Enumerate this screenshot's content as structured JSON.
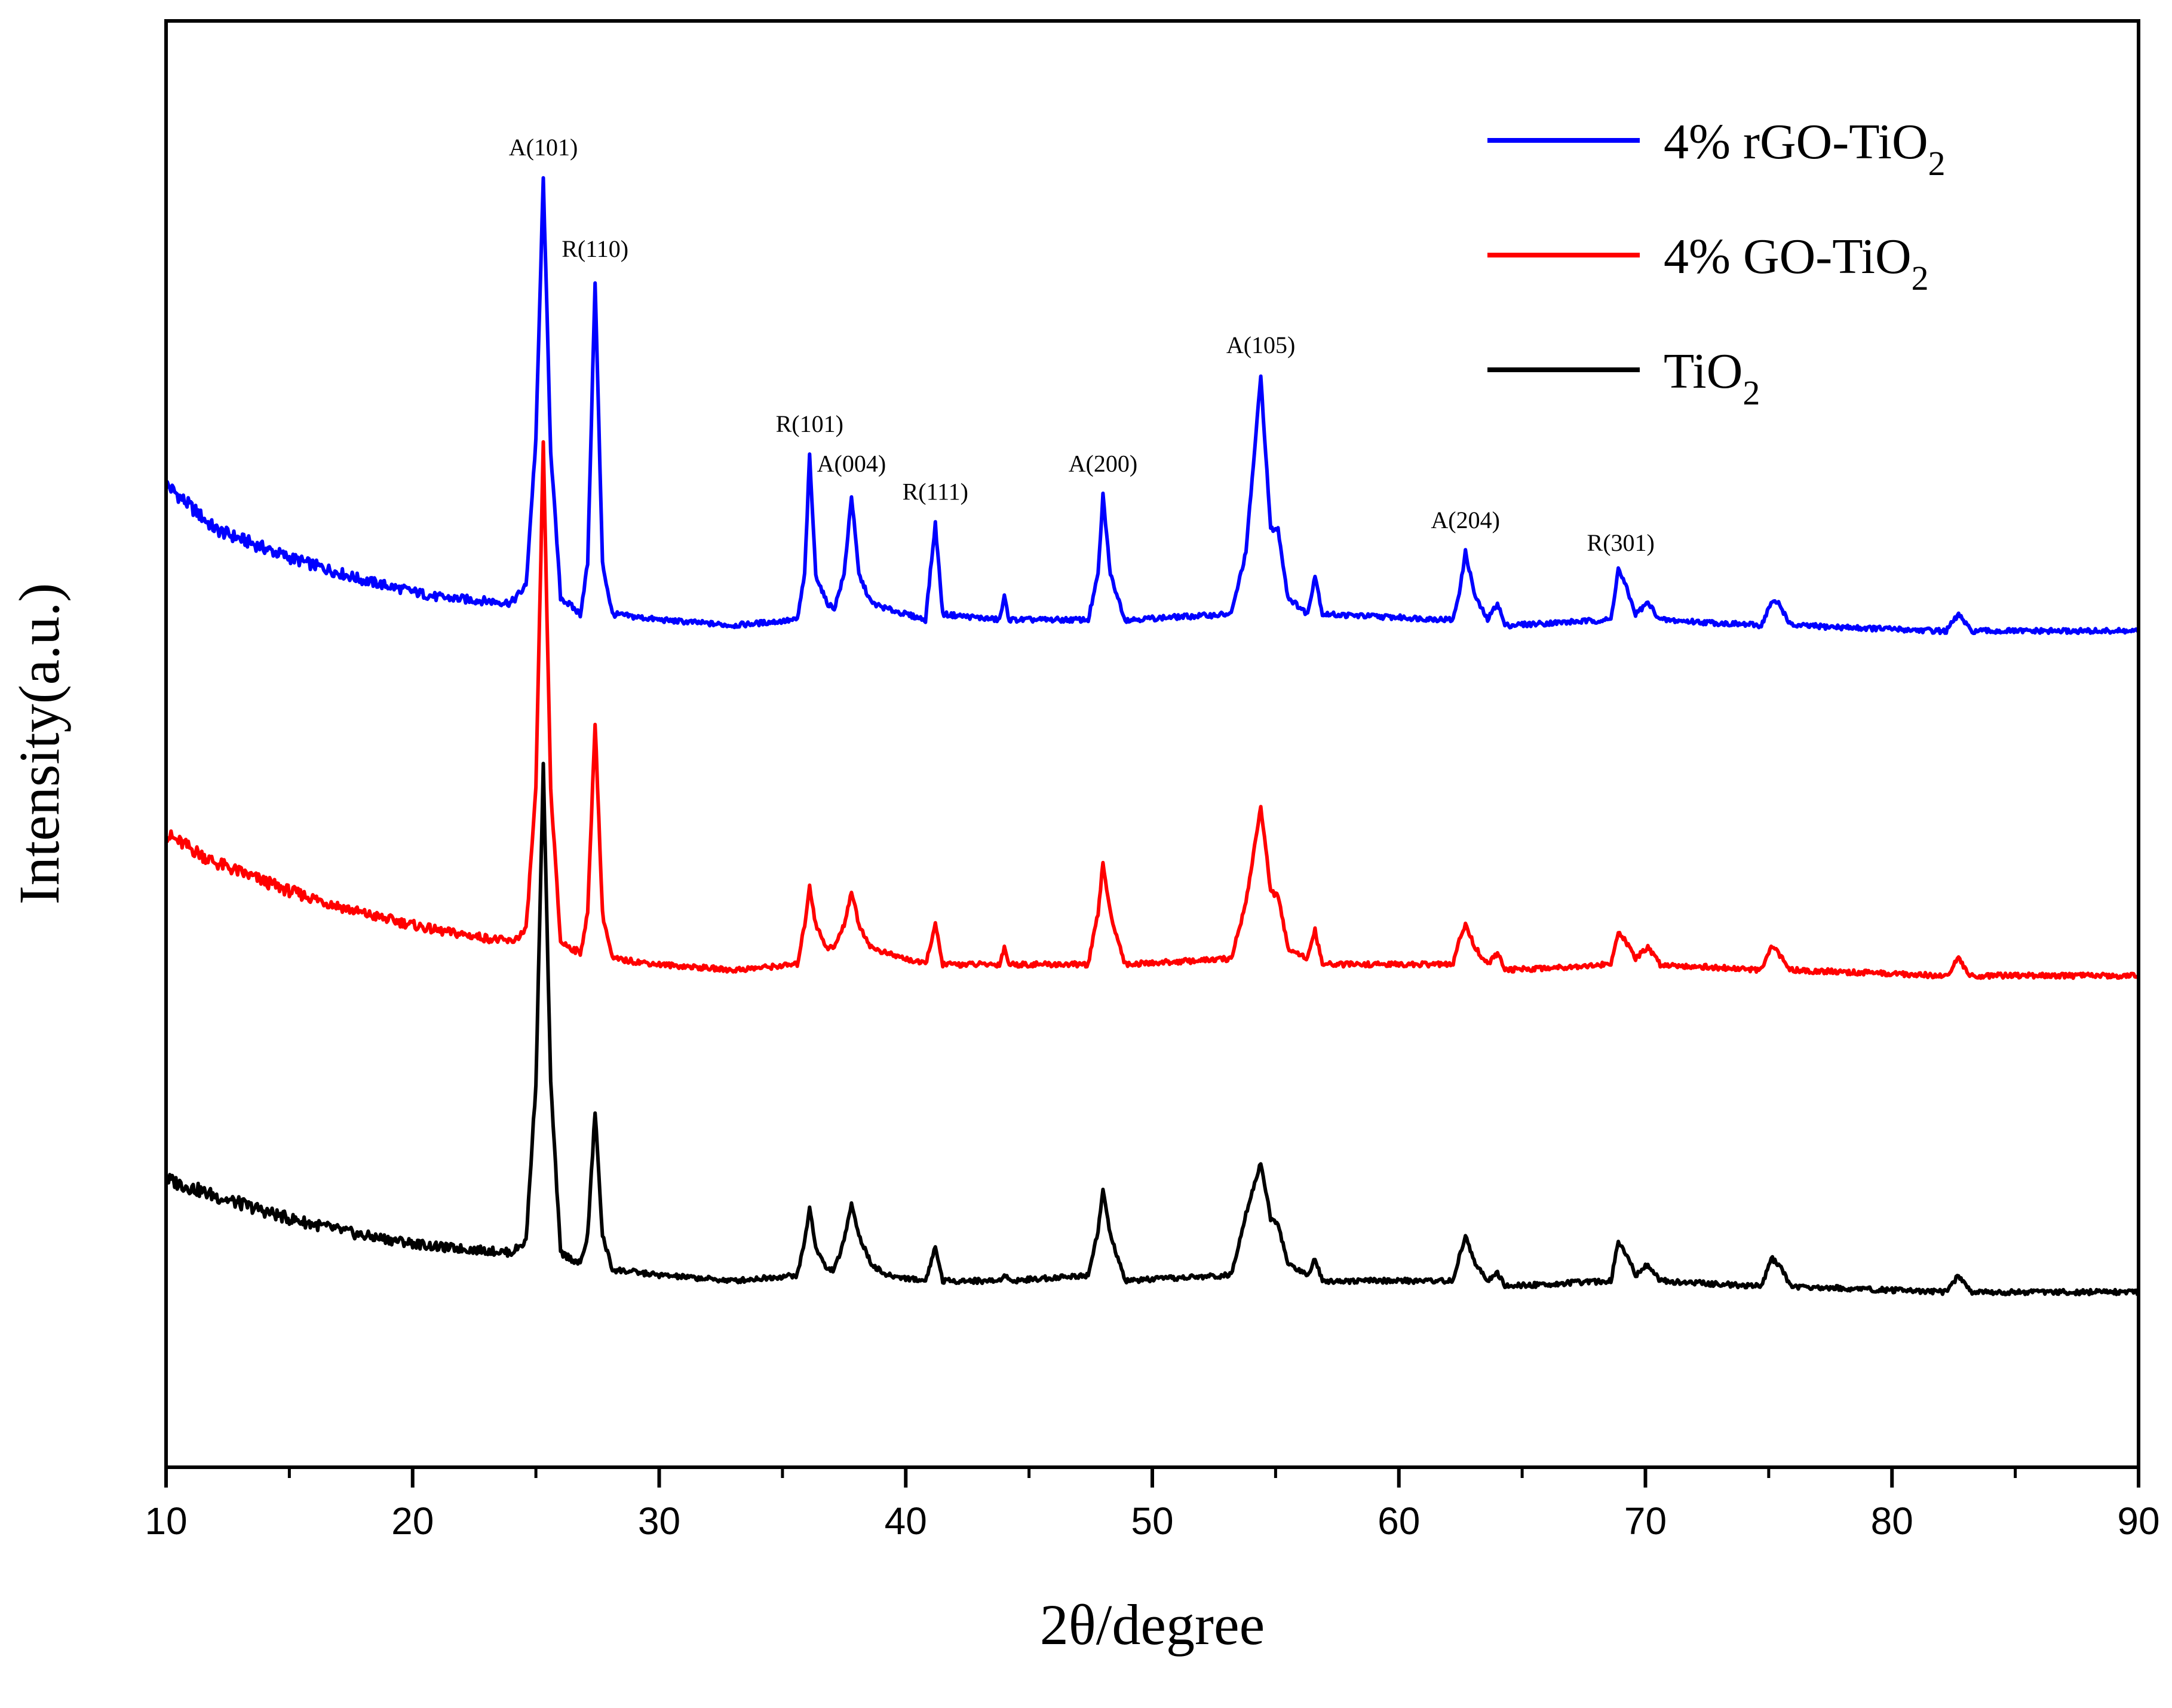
{
  "chart_data": {
    "type": "line",
    "title": "",
    "xlabel": "2θ/degree",
    "ylabel": "Intensity(a.u.)",
    "xlim": [
      10,
      90
    ],
    "x_ticks": [
      "10",
      "20",
      "30",
      "40",
      "50",
      "60",
      "70",
      "80",
      "90"
    ],
    "y_ticks_labeled": false,
    "grid": false,
    "legend_position": "top-right",
    "legend_entries": [
      {
        "base": "4% rGO-TiO",
        "sub": "2",
        "color": "#0000ff"
      },
      {
        "base": "4% GO-TiO",
        "sub": "2",
        "color": "#ff0000"
      },
      {
        "base": "TiO",
        "sub": "2",
        "color": "#000000"
      }
    ],
    "peak_labels": [
      {
        "text": "A(101)",
        "x": 25.3
      },
      {
        "text": "R(110)",
        "x": 27.4
      },
      {
        "text": "R(101)",
        "x": 36.1
      },
      {
        "text": "A(004)",
        "x": 37.8
      },
      {
        "text": "R(111)",
        "x": 41.2
      },
      {
        "text": "A(200)",
        "x": 48.0
      },
      {
        "text": "A(105)",
        "x": 54.4
      },
      {
        "text": "A(204)",
        "x": 62.7
      },
      {
        "text": "R(301)",
        "x": 69.0
      }
    ],
    "series": [
      {
        "name": "4% rGO-TiO2",
        "color": "#0000ff",
        "points": [
          [
            10,
            7.1
          ],
          [
            12,
            6.7
          ],
          [
            15,
            6.45
          ],
          [
            18,
            6.25
          ],
          [
            21,
            6.1
          ],
          [
            24,
            6.05
          ],
          [
            24.6,
            6.2
          ],
          [
            25.0,
            7.5
          ],
          [
            25.3,
            9.8
          ],
          [
            25.6,
            7.4
          ],
          [
            26.0,
            6.1
          ],
          [
            26.8,
            5.95
          ],
          [
            27.1,
            6.4
          ],
          [
            27.4,
            8.9
          ],
          [
            27.7,
            6.4
          ],
          [
            28.1,
            5.95
          ],
          [
            30,
            5.9
          ],
          [
            33,
            5.85
          ],
          [
            35.6,
            5.9
          ],
          [
            35.9,
            6.3
          ],
          [
            36.1,
            7.35
          ],
          [
            36.35,
            6.3
          ],
          [
            36.8,
            6.05
          ],
          [
            37.1,
            6.0
          ],
          [
            37.5,
            6.3
          ],
          [
            37.8,
            7.0
          ],
          [
            38.1,
            6.3
          ],
          [
            38.6,
            6.05
          ],
          [
            39.2,
            6.0
          ],
          [
            40.8,
            5.9
          ],
          [
            41.2,
            6.75
          ],
          [
            41.5,
            5.95
          ],
          [
            43.8,
            5.9
          ],
          [
            44.0,
            6.1
          ],
          [
            44.2,
            5.9
          ],
          [
            47.4,
            5.9
          ],
          [
            47.8,
            6.3
          ],
          [
            48.0,
            7.0
          ],
          [
            48.3,
            6.3
          ],
          [
            48.9,
            5.9
          ],
          [
            53.2,
            5.95
          ],
          [
            53.8,
            6.5
          ],
          [
            54.4,
            8.05
          ],
          [
            54.8,
            6.7
          ],
          [
            55.1,
            6.7
          ],
          [
            55.5,
            6.1
          ],
          [
            56.3,
            5.95
          ],
          [
            56.6,
            6.3
          ],
          [
            56.9,
            5.95
          ],
          [
            62.2,
            5.9
          ],
          [
            62.5,
            6.2
          ],
          [
            62.7,
            6.5
          ],
          [
            63.1,
            6.1
          ],
          [
            63.6,
            5.9
          ],
          [
            64.0,
            6.05
          ],
          [
            64.3,
            5.85
          ],
          [
            68.6,
            5.9
          ],
          [
            68.9,
            6.35
          ],
          [
            69.2,
            6.2
          ],
          [
            69.6,
            5.95
          ],
          [
            70.1,
            6.05
          ],
          [
            70.6,
            5.9
          ],
          [
            74.7,
            5.85
          ],
          [
            75.1,
            6.05
          ],
          [
            75.4,
            6.05
          ],
          [
            75.9,
            5.85
          ],
          [
            82.2,
            5.8
          ],
          [
            82.7,
            5.95
          ],
          [
            83.2,
            5.8
          ],
          [
            90,
            5.8
          ]
        ]
      },
      {
        "name": "4% GO-TiO2",
        "color": "#ff0000",
        "points": [
          [
            10,
            4.0
          ],
          [
            12,
            3.75
          ],
          [
            15,
            3.5
          ],
          [
            18,
            3.3
          ],
          [
            21,
            3.15
          ],
          [
            24,
            3.05
          ],
          [
            24.6,
            3.15
          ],
          [
            25.0,
            4.4
          ],
          [
            25.3,
            7.45
          ],
          [
            25.6,
            4.4
          ],
          [
            26.0,
            3.05
          ],
          [
            26.8,
            2.95
          ],
          [
            27.1,
            3.3
          ],
          [
            27.4,
            5.0
          ],
          [
            27.7,
            3.3
          ],
          [
            28.1,
            2.9
          ],
          [
            30,
            2.85
          ],
          [
            33,
            2.8
          ],
          [
            35.6,
            2.85
          ],
          [
            35.9,
            3.2
          ],
          [
            36.1,
            3.55
          ],
          [
            36.35,
            3.2
          ],
          [
            36.8,
            3.0
          ],
          [
            37.1,
            3.0
          ],
          [
            37.5,
            3.2
          ],
          [
            37.8,
            3.5
          ],
          [
            38.1,
            3.2
          ],
          [
            38.6,
            3.0
          ],
          [
            39.2,
            2.95
          ],
          [
            40.8,
            2.85
          ],
          [
            41.2,
            3.2
          ],
          [
            41.5,
            2.85
          ],
          [
            43.8,
            2.85
          ],
          [
            44.0,
            3.0
          ],
          [
            44.2,
            2.85
          ],
          [
            47.4,
            2.85
          ],
          [
            47.8,
            3.3
          ],
          [
            48.0,
            3.75
          ],
          [
            48.3,
            3.3
          ],
          [
            48.9,
            2.85
          ],
          [
            53.2,
            2.9
          ],
          [
            53.8,
            3.4
          ],
          [
            54.4,
            4.25
          ],
          [
            54.8,
            3.5
          ],
          [
            55.1,
            3.45
          ],
          [
            55.5,
            3.0
          ],
          [
            56.3,
            2.9
          ],
          [
            56.6,
            3.15
          ],
          [
            56.9,
            2.85
          ],
          [
            62.2,
            2.85
          ],
          [
            62.5,
            3.1
          ],
          [
            62.7,
            3.2
          ],
          [
            63.1,
            3.0
          ],
          [
            63.6,
            2.85
          ],
          [
            64.0,
            2.95
          ],
          [
            64.3,
            2.8
          ],
          [
            68.6,
            2.85
          ],
          [
            68.9,
            3.15
          ],
          [
            69.2,
            3.05
          ],
          [
            69.6,
            2.9
          ],
          [
            70.1,
            3.0
          ],
          [
            70.6,
            2.85
          ],
          [
            74.7,
            2.8
          ],
          [
            75.1,
            3.0
          ],
          [
            75.4,
            2.95
          ],
          [
            75.9,
            2.8
          ],
          [
            82.2,
            2.75
          ],
          [
            82.7,
            2.9
          ],
          [
            83.2,
            2.75
          ],
          [
            90,
            2.75
          ]
        ]
      },
      {
        "name": "TiO2",
        "color": "#000000",
        "points": [
          [
            10,
            0.95
          ],
          [
            12,
            0.8
          ],
          [
            15,
            0.6
          ],
          [
            18,
            0.45
          ],
          [
            21,
            0.35
          ],
          [
            24,
            0.3
          ],
          [
            24.6,
            0.4
          ],
          [
            25.0,
            1.8
          ],
          [
            25.3,
            4.6
          ],
          [
            25.6,
            1.8
          ],
          [
            26.0,
            0.3
          ],
          [
            26.8,
            0.2
          ],
          [
            27.1,
            0.45
          ],
          [
            27.4,
            1.55
          ],
          [
            27.7,
            0.45
          ],
          [
            28.1,
            0.15
          ],
          [
            30,
            0.1
          ],
          [
            33,
            0.05
          ],
          [
            35.6,
            0.1
          ],
          [
            35.9,
            0.4
          ],
          [
            36.1,
            0.7
          ],
          [
            36.35,
            0.35
          ],
          [
            36.8,
            0.15
          ],
          [
            37.1,
            0.15
          ],
          [
            37.5,
            0.4
          ],
          [
            37.8,
            0.75
          ],
          [
            38.1,
            0.45
          ],
          [
            38.6,
            0.2
          ],
          [
            39.2,
            0.1
          ],
          [
            40.8,
            0.05
          ],
          [
            41.2,
            0.35
          ],
          [
            41.5,
            0.05
          ],
          [
            43.8,
            0.05
          ],
          [
            44.0,
            0.12
          ],
          [
            44.2,
            0.05
          ],
          [
            47.4,
            0.1
          ],
          [
            47.8,
            0.5
          ],
          [
            48.0,
            0.85
          ],
          [
            48.3,
            0.45
          ],
          [
            48.9,
            0.05
          ],
          [
            53.2,
            0.1
          ],
          [
            53.8,
            0.65
          ],
          [
            54.4,
            1.1
          ],
          [
            54.8,
            0.6
          ],
          [
            55.1,
            0.55
          ],
          [
            55.5,
            0.2
          ],
          [
            56.3,
            0.1
          ],
          [
            56.6,
            0.25
          ],
          [
            56.9,
            0.05
          ],
          [
            62.2,
            0.05
          ],
          [
            62.5,
            0.3
          ],
          [
            62.7,
            0.45
          ],
          [
            63.1,
            0.2
          ],
          [
            63.6,
            0.05
          ],
          [
            64.0,
            0.12
          ],
          [
            64.3,
            0.0
          ],
          [
            68.6,
            0.05
          ],
          [
            68.9,
            0.4
          ],
          [
            69.2,
            0.3
          ],
          [
            69.6,
            0.1
          ],
          [
            70.1,
            0.2
          ],
          [
            70.6,
            0.05
          ],
          [
            74.7,
            0.0
          ],
          [
            75.1,
            0.25
          ],
          [
            75.4,
            0.2
          ],
          [
            75.9,
            0.0
          ],
          [
            82.2,
            -0.05
          ],
          [
            82.7,
            0.1
          ],
          [
            83.2,
            -0.05
          ],
          [
            90,
            -0.05
          ]
        ]
      }
    ]
  }
}
